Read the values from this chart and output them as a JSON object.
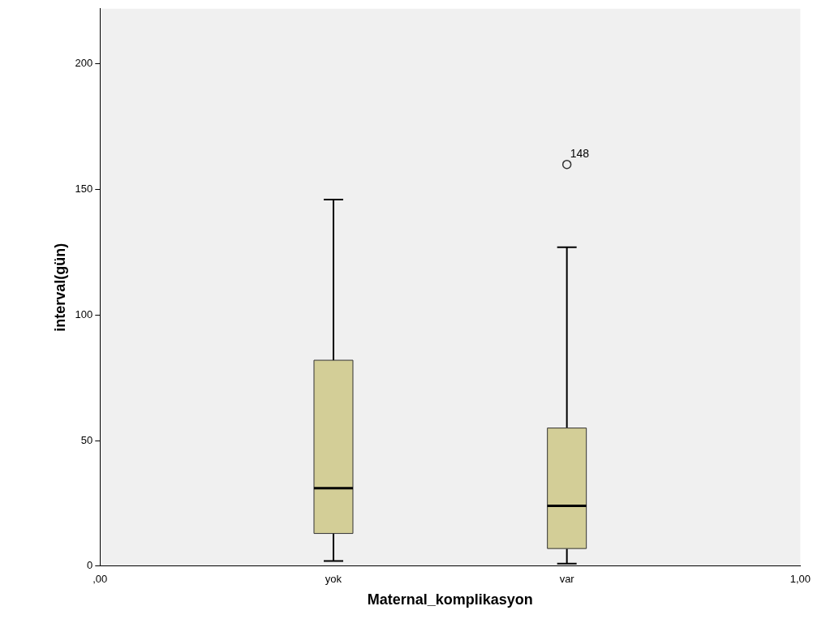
{
  "chart_data": {
    "type": "box",
    "xlabel": "Maternal_komplikasyon",
    "ylabel": "interval(gün)",
    "categories": [
      ",00",
      "yok",
      "var",
      "1,00"
    ],
    "color": "#d3ce97",
    "boxes": [
      null,
      {
        "low": 2,
        "q1": 13,
        "median": 31,
        "q3": 82,
        "high": 146
      },
      {
        "low": 1,
        "q1": 7,
        "median": 24,
        "q3": 55,
        "high": 127,
        "outliers": [
          160
        ]
      },
      null
    ],
    "annotations": [
      "148"
    ],
    "ylim": [
      0,
      222
    ],
    "yticks": [
      0,
      50,
      100,
      150,
      200
    ],
    "grid": false,
    "marker": "circle"
  }
}
